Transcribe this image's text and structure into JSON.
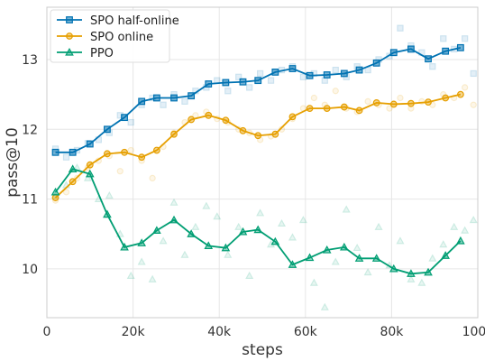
{
  "chart_data": {
    "type": "line",
    "xlabel": "steps",
    "ylabel": "pass@10",
    "xlim": [
      0,
      100000
    ],
    "ylim": [
      9.3,
      13.75
    ],
    "x_ticks": [
      0,
      20000,
      40000,
      60000,
      80000,
      100000
    ],
    "x_tick_labels": [
      "0",
      "20k",
      "40k",
      "60k",
      "80k",
      "100k"
    ],
    "y_ticks": [
      10,
      11,
      12,
      13
    ],
    "y_tick_labels": [
      "10",
      "11",
      "12",
      "13"
    ],
    "grid": true,
    "legend_position": "top-left",
    "series": [
      {
        "name": "SPO half-online",
        "color": "#0072B2",
        "marker": "square",
        "x": [
          2000,
          6000,
          10000,
          14000,
          18000,
          22000,
          25500,
          29500,
          33500,
          37500,
          41500,
          45500,
          49000,
          53000,
          57000,
          61000,
          65000,
          69000,
          72500,
          76500,
          80500,
          84500,
          88500,
          92500,
          96000
        ],
        "y": [
          11.67,
          11.67,
          11.79,
          12.0,
          12.17,
          12.4,
          12.45,
          12.45,
          12.48,
          12.65,
          12.67,
          12.68,
          12.7,
          12.82,
          12.87,
          12.77,
          12.78,
          12.8,
          12.85,
          12.95,
          13.1,
          13.15,
          13.01,
          13.12,
          13.17
        ],
        "raw_x": [
          2000,
          4500,
          7000,
          9500,
          12000,
          14500,
          17000,
          19500,
          22000,
          24500,
          27000,
          29500,
          32000,
          34500,
          37000,
          39500,
          42000,
          44500,
          47000,
          49500,
          52000,
          54500,
          57000,
          59500,
          62000,
          64500,
          67000,
          69500,
          72000,
          74500,
          77000,
          79500,
          82000,
          84500,
          87000,
          89500,
          92000,
          94500,
          97000,
          99000
        ],
        "raw_y": [
          11.72,
          11.6,
          11.7,
          11.8,
          11.85,
          11.95,
          12.2,
          12.1,
          12.35,
          12.45,
          12.35,
          12.5,
          12.4,
          12.55,
          12.6,
          12.7,
          12.55,
          12.75,
          12.6,
          12.8,
          12.7,
          12.85,
          12.9,
          12.75,
          12.8,
          12.7,
          12.85,
          12.75,
          12.9,
          12.85,
          13.0,
          13.05,
          13.45,
          13.2,
          13.1,
          12.9,
          13.3,
          13.15,
          13.3,
          12.8
        ]
      },
      {
        "name": "SPO online",
        "color": "#E69F00",
        "marker": "circle",
        "x": [
          2000,
          6000,
          10000,
          14000,
          18000,
          22000,
          25500,
          29500,
          33500,
          37500,
          41500,
          45500,
          49000,
          53000,
          57000,
          61000,
          65000,
          69000,
          72500,
          76500,
          80500,
          84500,
          88500,
          92500,
          96000
        ],
        "y": [
          11.02,
          11.25,
          11.49,
          11.65,
          11.67,
          11.6,
          11.7,
          11.93,
          12.14,
          12.2,
          12.13,
          11.98,
          11.91,
          11.93,
          12.18,
          12.3,
          12.3,
          12.32,
          12.27,
          12.38,
          12.36,
          12.37,
          12.39,
          12.45,
          12.5
        ],
        "raw_x": [
          2000,
          4500,
          7000,
          9500,
          12000,
          14500,
          17000,
          19500,
          22000,
          24500,
          27000,
          29500,
          32000,
          34500,
          37000,
          39500,
          42000,
          44500,
          47000,
          49500,
          52000,
          54500,
          57000,
          59500,
          62000,
          64500,
          67000,
          69500,
          72000,
          74500,
          77000,
          79500,
          82000,
          84500,
          87000,
          89500,
          92000,
          94500,
          97000,
          99000
        ],
        "raw_y": [
          10.98,
          11.1,
          11.3,
          11.45,
          11.55,
          11.62,
          11.4,
          11.7,
          11.55,
          11.3,
          11.75,
          11.95,
          12.1,
          12.2,
          12.25,
          12.15,
          12.1,
          12.0,
          11.95,
          11.85,
          11.9,
          12.0,
          12.15,
          12.3,
          12.45,
          12.35,
          12.55,
          12.3,
          12.25,
          12.4,
          12.35,
          12.3,
          12.45,
          12.3,
          12.4,
          12.35,
          12.5,
          12.45,
          12.6,
          12.35
        ]
      },
      {
        "name": "PPO",
        "color": "#009E73",
        "marker": "triangle",
        "x": [
          2000,
          6000,
          10000,
          14000,
          18000,
          22000,
          25500,
          29500,
          33500,
          37500,
          41500,
          45500,
          49000,
          53000,
          57000,
          61000,
          65000,
          69000,
          72500,
          76500,
          80500,
          84500,
          88500,
          92500,
          96000
        ],
        "y": [
          11.1,
          11.43,
          11.36,
          10.78,
          10.31,
          10.37,
          10.55,
          10.7,
          10.5,
          10.33,
          10.3,
          10.53,
          10.56,
          10.39,
          10.06,
          10.16,
          10.27,
          10.31,
          10.15,
          10.15,
          10.0,
          9.93,
          9.95,
          10.19,
          10.4
        ],
        "raw_x": [
          2000,
          4500,
          7000,
          9500,
          12000,
          14500,
          17000,
          19500,
          22000,
          24500,
          27000,
          29500,
          32000,
          34500,
          37000,
          39500,
          42000,
          44500,
          47000,
          49500,
          52000,
          54500,
          57000,
          59500,
          62000,
          64500,
          67000,
          69500,
          72000,
          74500,
          77000,
          79500,
          82000,
          84500,
          87000,
          89500,
          92000,
          94500,
          97000,
          99000
        ],
        "raw_y": [
          11.05,
          11.2,
          11.45,
          11.3,
          11.0,
          11.05,
          10.5,
          9.9,
          10.1,
          9.85,
          10.4,
          10.95,
          10.2,
          10.6,
          10.9,
          10.75,
          10.2,
          10.6,
          9.9,
          10.8,
          10.35,
          10.65,
          10.45,
          10.7,
          9.8,
          9.45,
          10.1,
          10.85,
          10.3,
          9.95,
          10.6,
          10.05,
          10.4,
          9.85,
          9.8,
          10.15,
          10.35,
          10.6,
          10.55,
          10.7
        ]
      }
    ]
  }
}
